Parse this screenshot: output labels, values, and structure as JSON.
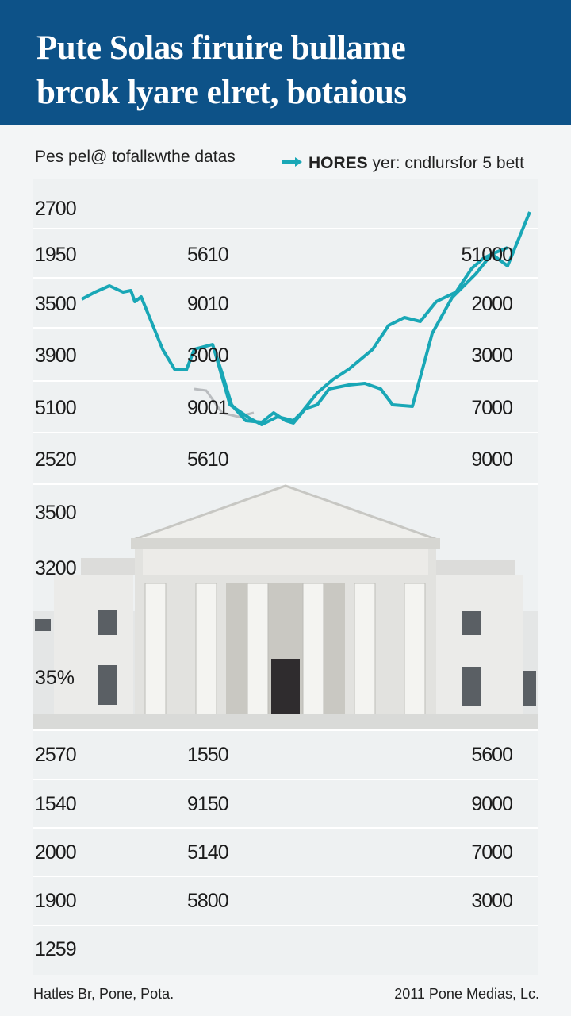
{
  "header": {
    "title_line1": "Pute  Solas firuire bullame",
    "title_line2": "brcok lyare elret, botaious"
  },
  "subtitle": "Pes pel@ tofallɛwthe datas",
  "legend": {
    "bold": "HORES",
    "text": "yer: cndlursfor 5 bett"
  },
  "upper_rows": [
    {
      "left": "2700"
    },
    {
      "left": "1950",
      "middle": "5610",
      "right": "51000"
    },
    {
      "left": "3500",
      "middle": "9010",
      "right": "2000"
    },
    {
      "left": "3900",
      "middle": "3000",
      "right": "3000"
    },
    {
      "left": "5100",
      "middle": "9001",
      "right": "7000"
    },
    {
      "left": "2520",
      "middle": "5610",
      "right": "9000"
    },
    {
      "left": "3500"
    },
    {
      "left": "3200"
    }
  ],
  "building_label": "35%",
  "lower_rows": [
    {
      "left": "2570",
      "middle": "1550",
      "right": "5600"
    },
    {
      "left": "1540",
      "middle": "9150",
      "right": "9000"
    },
    {
      "left": "2000",
      "middle": "5140",
      "right": "7000"
    },
    {
      "left": "1900",
      "middle": "5800",
      "right": "3000"
    },
    {
      "left": "1259"
    }
  ],
  "footer": {
    "left": "Hatles Br, Pone, Pota.",
    "right": "2011 Pone Medias, Lc."
  }
}
